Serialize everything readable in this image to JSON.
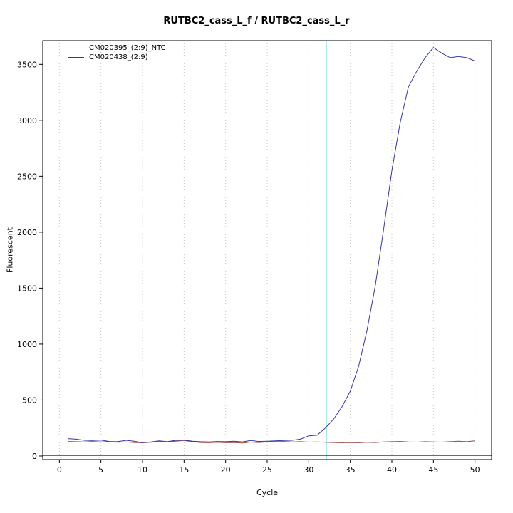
{
  "chart_data": {
    "type": "line",
    "title": "RUTBC2_cass_L_f / RUTBC2_cass_L_r",
    "xlabel": "Cycle",
    "ylabel": "Fluorescent",
    "xlim": [
      -2,
      52
    ],
    "ylim": [
      -32,
      3712
    ],
    "x_ticks": [
      0,
      5,
      10,
      15,
      20,
      25,
      30,
      35,
      40,
      45,
      50
    ],
    "y_ticks": [
      0,
      500,
      1000,
      1500,
      2000,
      2500,
      3000,
      3500
    ],
    "grid": "vertical-dotted",
    "legend_position": "top-left",
    "ct_line_x": 32.1,
    "ct_line_color": "#00c8c8",
    "threshold_line_y": 5,
    "threshold_line_color": "#8b1a1a",
    "x": [
      1,
      2,
      3,
      4,
      5,
      6,
      7,
      8,
      9,
      10,
      11,
      12,
      13,
      14,
      15,
      16,
      17,
      18,
      19,
      20,
      21,
      22,
      23,
      24,
      25,
      26,
      27,
      28,
      29,
      30,
      31,
      32,
      33,
      34,
      35,
      36,
      37,
      38,
      39,
      40,
      41,
      42,
      43,
      44,
      45,
      46,
      47,
      48,
      49,
      50
    ],
    "series": [
      {
        "name": "CM020395_(2:9)_NTC",
        "color": "#9e4244",
        "values": [
          130,
          128,
          126,
          130,
          125,
          128,
          122,
          126,
          120,
          118,
          122,
          128,
          124,
          132,
          138,
          128,
          120,
          118,
          122,
          118,
          120,
          116,
          124,
          120,
          126,
          128,
          130,
          126,
          128,
          124,
          126,
          122,
          120,
          118,
          120,
          118,
          122,
          120,
          126,
          128,
          130,
          126,
          124,
          128,
          126,
          124,
          128,
          132,
          128,
          135
        ]
      },
      {
        "name": "CM020438_(2:9)",
        "color": "#3434a4",
        "values": [
          155,
          150,
          140,
          138,
          142,
          130,
          128,
          140,
          132,
          118,
          125,
          135,
          128,
          140,
          142,
          132,
          128,
          126,
          130,
          128,
          132,
          126,
          138,
          130,
          132,
          135,
          138,
          140,
          150,
          180,
          185,
          250,
          330,
          440,
          580,
          800,
          1120,
          1520,
          2020,
          2550,
          2980,
          3300,
          3440,
          3560,
          3650,
          3600,
          3560,
          3570,
          3560,
          3530
        ]
      }
    ]
  }
}
